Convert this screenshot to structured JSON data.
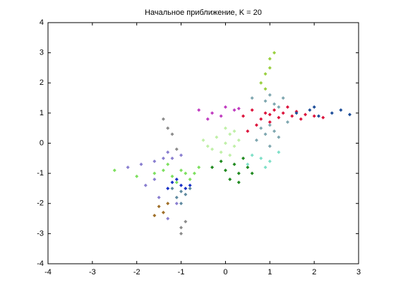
{
  "chart_data": {
    "type": "scatter",
    "title": "Начальное приближение, K = 20",
    "xlim": [
      -4,
      3
    ],
    "ylim": [
      -4,
      4
    ],
    "xticks": [
      -4,
      -3,
      -2,
      -1,
      0,
      1,
      2,
      3
    ],
    "yticks": [
      -4,
      -3,
      -2,
      -1,
      0,
      1,
      2,
      3,
      4
    ],
    "grid": false,
    "series": [
      {
        "color": "#dc143c",
        "x": [
          0.4,
          0.6,
          0.8,
          0.9,
          1.0,
          1.1,
          1.2,
          1.3,
          1.5,
          1.6,
          1.8,
          2.0,
          2.2,
          0.7,
          1.4,
          1.0,
          0.5,
          1.7
        ],
        "values": [
          0.9,
          1.1,
          0.8,
          1.0,
          0.95,
          1.1,
          0.85,
          1.0,
          0.9,
          1.05,
          0.95,
          0.9,
          0.85,
          0.6,
          1.2,
          0.7,
          0.4,
          0.8
        ]
      },
      {
        "color": "#7fa7b0",
        "x": [
          0.8,
          0.9,
          1.0,
          1.1,
          1.2,
          0.9,
          1.0,
          1.1,
          1.3,
          0.7,
          1.0,
          1.2,
          1.4,
          0.6
        ],
        "values": [
          0.5,
          0.3,
          0.6,
          0.4,
          0.2,
          1.4,
          1.6,
          1.3,
          1.5,
          0.1,
          -0.1,
          1.2,
          0.7,
          1.5
        ]
      },
      {
        "color": "#c0f0a8",
        "x": [
          -0.5,
          -0.3,
          -0.2,
          0,
          0.1,
          0.2,
          0.3,
          -0.1,
          0,
          0.2,
          -0.4,
          0.1
        ],
        "values": [
          0.1,
          -0.2,
          0.2,
          0,
          0.3,
          -0.1,
          0.1,
          -0.3,
          0.5,
          0.4,
          -0.1,
          -0.4
        ]
      },
      {
        "color": "#228b22",
        "x": [
          -0.3,
          0,
          0.2,
          0.3,
          0.5,
          0.1,
          -0.1,
          0.4,
          0.6,
          0.3
        ],
        "values": [
          -0.8,
          -0.9,
          -0.7,
          -1.0,
          -0.8,
          -1.2,
          -0.6,
          -0.5,
          -1.0,
          -1.3
        ]
      },
      {
        "color": "#7ee060",
        "x": [
          -1.6,
          -1.4,
          -1.2,
          -1.0,
          -0.9,
          -0.8,
          -0.6,
          -1.1,
          -1.3,
          -0.7,
          -2.0,
          -2.5
        ],
        "values": [
          -1.0,
          -0.9,
          -1.1,
          -0.9,
          -1.0,
          -1.2,
          -0.8,
          -1.3,
          -0.7,
          -1.0,
          -1.1,
          -0.9
        ]
      },
      {
        "color": "#1a32c8",
        "x": [
          -1.2,
          -1.0,
          -0.9,
          -1.1,
          -0.8,
          -1.3
        ],
        "values": [
          -1.3,
          -1.4,
          -1.5,
          -1.2,
          -1.4,
          -1.5
        ]
      },
      {
        "color": "#8a7fd0",
        "x": [
          -2.2,
          -1.9,
          -1.6,
          -1.4,
          -1.3,
          -1.2,
          -1.0,
          -1.5,
          -1.1,
          -1.8,
          -1.3,
          -1.6
        ],
        "values": [
          -0.8,
          -0.7,
          -0.6,
          -0.5,
          -0.3,
          -0.5,
          -0.4,
          -1.8,
          -2.0,
          -1.4,
          -2.5,
          -1.2
        ]
      },
      {
        "color": "#5f8aa0",
        "x": [
          -1.2,
          -1.0,
          -0.9,
          -1.1,
          -0.8,
          -1.0
        ],
        "values": [
          -1.5,
          -1.6,
          -1.7,
          -1.8,
          -1.5,
          -2.0
        ]
      },
      {
        "color": "#c03cc0",
        "x": [
          -0.6,
          -0.3,
          0,
          0.2,
          -0.1,
          0.3,
          -0.4
        ],
        "values": [
          1.1,
          1.0,
          1.2,
          1.1,
          0.9,
          1.15,
          0.8
        ]
      },
      {
        "color": "#a0702a",
        "x": [
          -1.5,
          -1.4,
          -1.6,
          -1.3
        ],
        "values": [
          -2.1,
          -2.3,
          -2.4,
          -2.0
        ]
      },
      {
        "color": "#1f4f9a",
        "x": [
          1.6,
          1.9,
          2.1,
          2.4,
          2.6,
          2.8,
          2.0
        ],
        "values": [
          1.0,
          1.1,
          0.9,
          1.0,
          1.1,
          0.95,
          1.2
        ]
      },
      {
        "color": "#9ad040",
        "x": [
          0.8,
          0.9,
          1.0,
          1.1,
          1.0,
          0.9
        ],
        "values": [
          2.0,
          2.3,
          2.5,
          3.0,
          2.8,
          1.8
        ]
      },
      {
        "color": "#7fe0c8",
        "x": [
          0.6,
          0.8,
          1.0,
          1.2,
          0.5,
          0.9
        ],
        "values": [
          -0.4,
          -0.5,
          -0.6,
          -0.3,
          -0.7,
          -0.8
        ]
      },
      {
        "color": "#8c8c8c",
        "x": [
          -1.3,
          -1.2,
          -1.1,
          -0.9,
          -1.0,
          -1.4,
          -1.0
        ],
        "values": [
          0.5,
          0.3,
          -0.2,
          -2.6,
          -3.0,
          0.8,
          -2.8
        ]
      }
    ]
  }
}
